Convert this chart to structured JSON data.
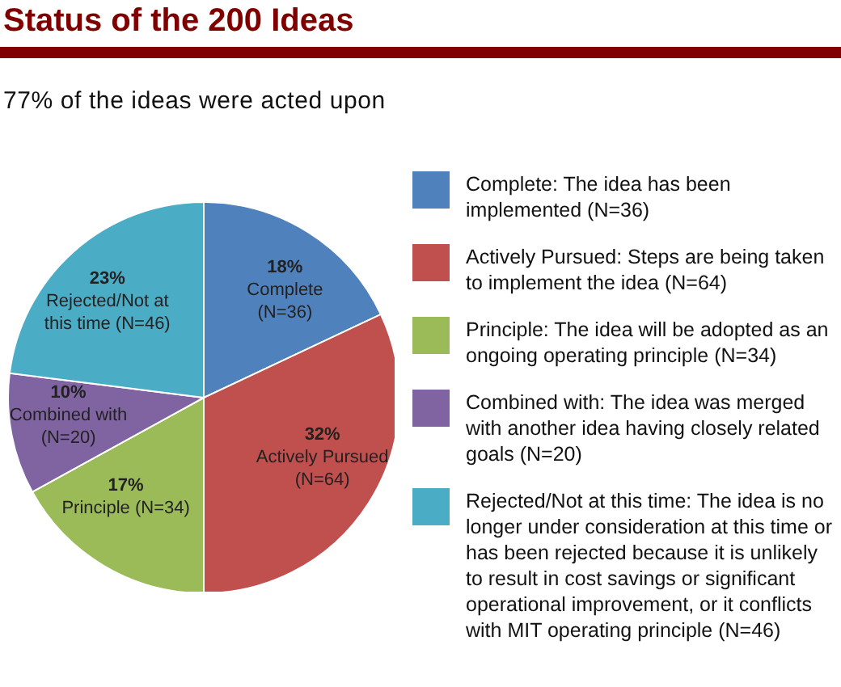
{
  "chart_data": {
    "type": "pie",
    "title": "Status of the 200 Ideas",
    "subtitle": "77% of the ideas were acted upon",
    "categories": [
      "Complete: The idea has been implemented (N=36)",
      "Actively Pursued: Steps are being taken to implement the idea (N=64)",
      "Principle: The idea will be adopted as an ongoing operating principle (N=34)",
      "Combined with: The idea was merged with another idea having closely related goals (N=20)",
      "Rejected/Not at this time: The idea is no longer under consideration at this time or has been rejected because it is unlikely to result in cost savings or significant operational improvement, or it conflicts with MIT operating principle (N=46)"
    ],
    "values": [
      18,
      32,
      17,
      10,
      23
    ],
    "colors": [
      "#4f81bd",
      "#c0504d",
      "#9bbb59",
      "#8064a2",
      "#4bacc6"
    ],
    "value_labels": [
      "18%\nComplete\n(N=36)",
      "32%\nActively Pursued\n(N=64)",
      "17%\nPrinciple (N=34)",
      "10%\nCombined  with\n(N=20)",
      "23%\nRejected/Not at\nthis time (N=46)"
    ],
    "legend": "right"
  }
}
